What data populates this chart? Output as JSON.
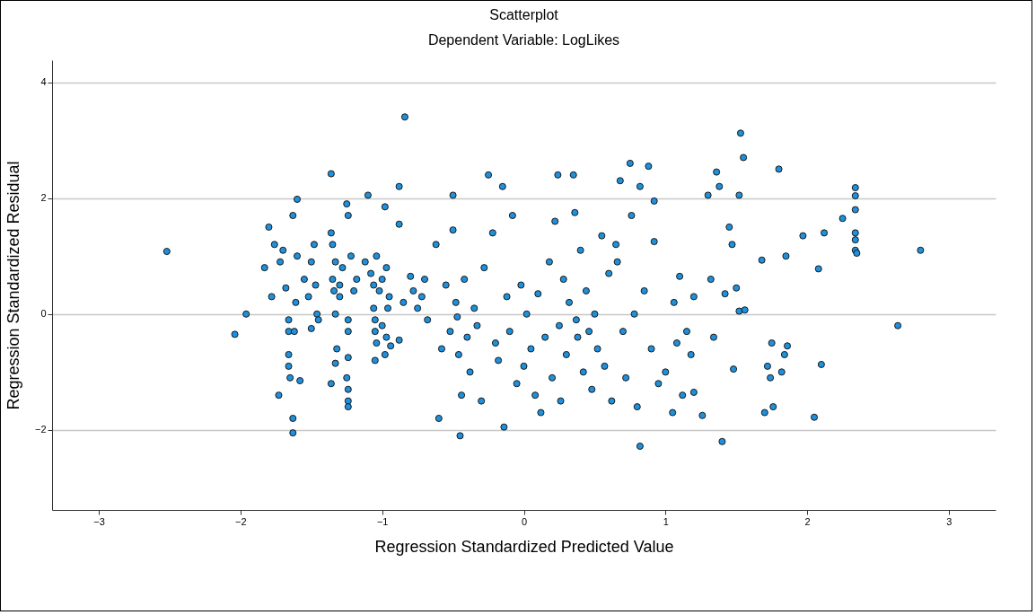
{
  "chart_data": {
    "type": "scatter",
    "title": "Scatterplot",
    "subtitle": "Dependent Variable: LogLikes",
    "xlabel": "Regression Standardized Predicted Value",
    "ylabel": "Regression Standardized Residual",
    "xlim": [
      -3.33,
      3.33
    ],
    "ylim": [
      -3.38,
      4.38
    ],
    "xticks": [
      -3,
      -2,
      -1,
      0,
      1,
      2,
      3
    ],
    "yticks": [
      -2,
      0,
      2,
      4
    ],
    "grid": "y",
    "marker": "circle",
    "series": [
      {
        "color": "#1e90dc",
        "x": [
          -2.52,
          -2.04,
          -1.96,
          -1.83,
          -1.8,
          -1.78,
          -1.76,
          -1.73,
          -1.72,
          -1.7,
          -1.68,
          -1.66,
          -1.66,
          -1.66,
          -1.66,
          -1.65,
          -1.63,
          -1.63,
          -1.63,
          -1.62,
          -1.61,
          -1.6,
          -1.6,
          -1.58,
          -1.55,
          -1.52,
          -1.5,
          -1.5,
          -1.48,
          -1.47,
          -1.46,
          -1.45,
          -1.36,
          -1.36,
          -1.35,
          -1.35,
          -1.34,
          -1.33,
          -1.33,
          -1.32,
          -1.33,
          -1.36,
          -1.3,
          -1.3,
          -1.28,
          -1.25,
          -1.24,
          -1.24,
          -1.24,
          -1.24,
          -1.25,
          -1.24,
          -1.24,
          -1.24,
          -1.22,
          -1.2,
          -1.18,
          -1.1,
          -1.12,
          -1.08,
          -1.06,
          -1.06,
          -1.05,
          -1.05,
          -1.04,
          -1.05,
          -1.04,
          -1.02,
          -1.0,
          -1.0,
          -0.98,
          -0.98,
          -0.97,
          -0.97,
          -0.96,
          -0.95,
          -0.94,
          -0.84,
          -0.88,
          -0.88,
          -0.88,
          -0.85,
          -0.8,
          -0.78,
          -0.75,
          -0.72,
          -0.7,
          -0.68,
          -0.62,
          -0.6,
          -0.58,
          -0.55,
          -0.52,
          -0.5,
          -0.5,
          -0.48,
          -0.47,
          -0.46,
          -0.45,
          -0.44,
          -0.42,
          -0.4,
          -0.38,
          -0.35,
          -0.33,
          -0.3,
          -0.28,
          -0.25,
          -0.22,
          -0.2,
          -0.18,
          -0.15,
          -0.14,
          -0.12,
          -0.1,
          -0.08,
          -0.05,
          -0.02,
          0.0,
          0.02,
          0.05,
          0.08,
          0.1,
          0.12,
          0.15,
          0.18,
          0.2,
          0.22,
          0.24,
          0.25,
          0.26,
          0.28,
          0.3,
          0.32,
          0.35,
          0.36,
          0.37,
          0.38,
          0.4,
          0.42,
          0.44,
          0.46,
          0.48,
          0.5,
          0.52,
          0.55,
          0.57,
          0.6,
          0.62,
          0.65,
          0.66,
          0.68,
          0.7,
          0.72,
          0.75,
          0.76,
          0.78,
          0.8,
          0.82,
          0.82,
          0.85,
          0.88,
          0.9,
          0.92,
          0.92,
          0.95,
          1.0,
          1.05,
          1.06,
          1.08,
          1.1,
          1.12,
          1.15,
          1.18,
          1.2,
          1.2,
          1.26,
          1.3,
          1.32,
          1.34,
          1.36,
          1.38,
          1.4,
          1.42,
          1.45,
          1.47,
          1.48,
          1.5,
          1.52,
          1.52,
          1.53,
          1.55,
          1.56,
          1.68,
          1.7,
          1.72,
          1.74,
          1.75,
          1.76,
          1.8,
          1.82,
          1.84,
          1.85,
          1.86,
          1.97,
          2.05,
          2.08,
          2.1,
          2.12,
          2.25,
          2.34,
          2.34,
          2.34,
          2.34,
          2.34,
          2.34,
          2.35,
          2.64,
          2.8
        ],
        "values": [
          1.08,
          -0.35,
          0.0,
          0.8,
          1.5,
          0.3,
          1.2,
          -1.4,
          0.9,
          1.1,
          0.45,
          -0.1,
          -0.3,
          -0.7,
          -0.9,
          -1.1,
          1.7,
          -1.8,
          -2.05,
          -0.3,
          0.2,
          1.98,
          1.0,
          -1.15,
          0.6,
          0.3,
          0.9,
          -0.25,
          1.2,
          0.5,
          0.0,
          -0.1,
          2.42,
          1.4,
          1.2,
          0.6,
          0.4,
          0.9,
          0.0,
          -0.6,
          -0.85,
          -1.2,
          0.3,
          0.5,
          0.8,
          1.9,
          1.7,
          -0.1,
          -0.3,
          -0.75,
          -1.1,
          -1.3,
          -1.5,
          -1.6,
          1.0,
          0.4,
          0.6,
          2.05,
          0.9,
          0.7,
          0.5,
          0.1,
          -0.1,
          -0.3,
          -0.5,
          -0.8,
          1.0,
          0.4,
          0.6,
          -0.2,
          -0.7,
          1.85,
          0.8,
          -0.4,
          0.1,
          0.3,
          -0.55,
          3.4,
          2.2,
          1.55,
          -0.45,
          0.2,
          0.65,
          0.4,
          0.1,
          0.3,
          0.6,
          -0.1,
          1.2,
          -1.8,
          -0.6,
          0.5,
          -0.3,
          2.05,
          1.45,
          0.2,
          -0.05,
          -0.7,
          -2.1,
          -1.4,
          0.6,
          -0.4,
          -1.0,
          0.1,
          -0.2,
          -1.5,
          0.8,
          2.4,
          1.4,
          -0.5,
          -0.8,
          2.2,
          -1.95,
          0.3,
          -0.3,
          1.7,
          -1.2,
          0.5,
          -0.9,
          0.0,
          -0.6,
          -1.4,
          0.35,
          -1.7,
          -0.4,
          0.9,
          -1.1,
          1.6,
          2.4,
          -0.2,
          -1.5,
          0.6,
          -0.7,
          0.2,
          2.4,
          1.75,
          -0.1,
          -0.4,
          1.1,
          -1.0,
          0.4,
          -0.3,
          -1.3,
          0.0,
          -0.6,
          1.35,
          -0.9,
          0.7,
          -1.5,
          1.2,
          0.9,
          2.3,
          -0.3,
          -1.1,
          2.6,
          1.7,
          0.0,
          -1.6,
          2.2,
          -2.28,
          0.4,
          2.55,
          -0.6,
          1.95,
          1.25,
          -1.2,
          -1.0,
          -1.7,
          0.2,
          -0.5,
          0.65,
          -1.4,
          -0.3,
          -0.7,
          0.3,
          -1.35,
          -1.75,
          2.05,
          0.6,
          -0.4,
          2.45,
          2.2,
          -2.2,
          0.35,
          1.5,
          1.2,
          -0.95,
          0.45,
          2.05,
          0.05,
          3.12,
          2.7,
          0.07,
          0.93,
          -1.7,
          -0.9,
          -1.1,
          -0.5,
          -1.6,
          2.5,
          -1.0,
          -0.7,
          1.0,
          -0.55,
          1.35,
          -1.78,
          0.78,
          -0.87,
          1.4,
          1.65,
          2.18,
          2.04,
          1.8,
          1.4,
          1.28,
          1.1,
          1.05,
          -0.2,
          1.1
        ]
      }
    ]
  }
}
